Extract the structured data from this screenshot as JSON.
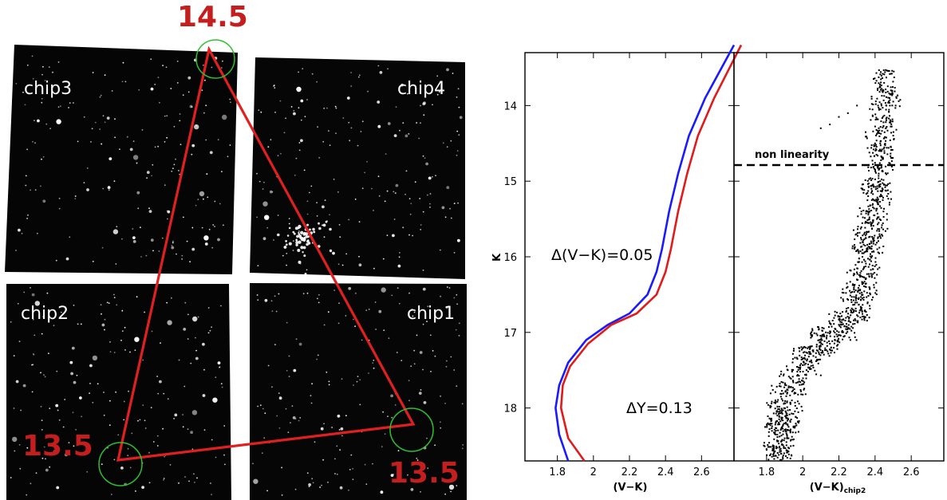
{
  "image_panel": {
    "chips": [
      {
        "id": "chip3",
        "label": "chip3"
      },
      {
        "id": "chip4",
        "label": "chip4"
      },
      {
        "id": "chip2",
        "label": "chip2"
      },
      {
        "id": "chip1",
        "label": "chip1"
      }
    ],
    "markers": [
      {
        "label": "14.5",
        "chip": "chip3/chip4 top"
      },
      {
        "label": "13.5",
        "chip": "chip2"
      },
      {
        "label": "13.5",
        "chip": "chip1"
      }
    ],
    "colors": {
      "triangle": "#e02020",
      "marker_label": "#c41e1e",
      "circle": "#2fbf2f",
      "sky": "#000000"
    }
  },
  "chart_data": [
    {
      "type": "line",
      "xlabel": "(V−K)",
      "ylabel": "K",
      "xlim": [
        1.62,
        2.78
      ],
      "ylim": [
        18.7,
        13.3
      ],
      "y_inverted": true,
      "xticks": [
        1.8,
        2,
        2.2,
        2.4,
        2.6
      ],
      "xticklabels": [
        "1.8",
        "2",
        "2.2",
        "2.4",
        "2.6"
      ],
      "yticks": [
        14,
        15,
        16,
        17,
        18
      ],
      "yticklabels": [
        "14",
        "15",
        "16",
        "17",
        "18"
      ],
      "series": [
        {
          "color": "#1a1aff",
          "points": [
            [
              1.86,
              18.7
            ],
            [
              1.81,
              18.35
            ],
            [
              1.79,
              18.0
            ],
            [
              1.81,
              17.7
            ],
            [
              1.86,
              17.4
            ],
            [
              1.96,
              17.1
            ],
            [
              2.08,
              16.9
            ],
            [
              2.2,
              16.75
            ],
            [
              2.3,
              16.5
            ],
            [
              2.35,
              16.2
            ],
            [
              2.38,
              15.9
            ],
            [
              2.42,
              15.4
            ],
            [
              2.47,
              14.9
            ],
            [
              2.53,
              14.4
            ],
            [
              2.62,
              13.9
            ],
            [
              2.78,
              13.2
            ]
          ]
        },
        {
          "color": "#e01b1b",
          "points": [
            [
              1.95,
              18.7
            ],
            [
              1.86,
              18.4
            ],
            [
              1.82,
              18.0
            ],
            [
              1.83,
              17.7
            ],
            [
              1.87,
              17.45
            ],
            [
              1.97,
              17.15
            ],
            [
              2.1,
              16.9
            ],
            [
              2.24,
              16.75
            ],
            [
              2.35,
              16.5
            ],
            [
              2.4,
              16.2
            ],
            [
              2.43,
              15.9
            ],
            [
              2.47,
              15.4
            ],
            [
              2.52,
              14.9
            ],
            [
              2.58,
              14.4
            ],
            [
              2.67,
              13.9
            ],
            [
              2.82,
              13.2
            ]
          ]
        }
      ],
      "annotations": [
        {
          "text": "Δ(V−K)=0.05",
          "x": 1.62,
          "y": 16.0
        },
        {
          "text": "ΔY=0.13",
          "x": 2.1,
          "y": 17.9
        }
      ]
    },
    {
      "type": "scatter",
      "xlabel": "(V−K)",
      "xlabel_subscript": "chip2",
      "xlim": [
        1.62,
        2.78
      ],
      "ylim": [
        18.7,
        13.3
      ],
      "y_inverted": true,
      "xticks": [
        1.8,
        2,
        2.2,
        2.4,
        2.6
      ],
      "xticklabels": [
        "1.8",
        "2",
        "2.2",
        "2.4",
        "2.6"
      ],
      "reference_line": {
        "y": 14.8,
        "label": "non linearity",
        "style": "dashed"
      },
      "points": [
        [
          2.45,
          13.7
        ],
        [
          2.48,
          13.9
        ],
        [
          2.43,
          14.05
        ],
        [
          2.46,
          14.3
        ],
        [
          2.4,
          14.5
        ],
        [
          2.44,
          14.7
        ],
        [
          2.42,
          14.9
        ],
        [
          2.38,
          15.1
        ],
        [
          2.43,
          15.2
        ],
        [
          2.36,
          15.4
        ],
        [
          2.41,
          15.5
        ],
        [
          2.34,
          15.7
        ],
        [
          2.39,
          15.8
        ],
        [
          2.33,
          16.0
        ],
        [
          2.37,
          16.1
        ],
        [
          2.3,
          16.3
        ],
        [
          2.35,
          16.4
        ],
        [
          2.27,
          16.6
        ],
        [
          2.32,
          16.7
        ],
        [
          2.2,
          16.9
        ],
        [
          2.25,
          16.95
        ],
        [
          2.1,
          17.1
        ],
        [
          2.15,
          17.15
        ],
        [
          2.0,
          17.35
        ],
        [
          2.05,
          17.4
        ],
        [
          1.93,
          17.6
        ],
        [
          1.98,
          17.65
        ],
        [
          1.88,
          17.85
        ],
        [
          1.94,
          17.9
        ],
        [
          1.86,
          18.1
        ],
        [
          1.92,
          18.15
        ],
        [
          1.85,
          18.35
        ],
        [
          1.9,
          18.4
        ],
        [
          1.84,
          18.6
        ],
        [
          1.89,
          18.65
        ],
        [
          2.1,
          14.3
        ],
        [
          2.2,
          14.15
        ],
        [
          2.3,
          14.0
        ],
        [
          2.15,
          14.25
        ],
        [
          2.25,
          14.1
        ]
      ],
      "marker_color": "#000000"
    }
  ]
}
